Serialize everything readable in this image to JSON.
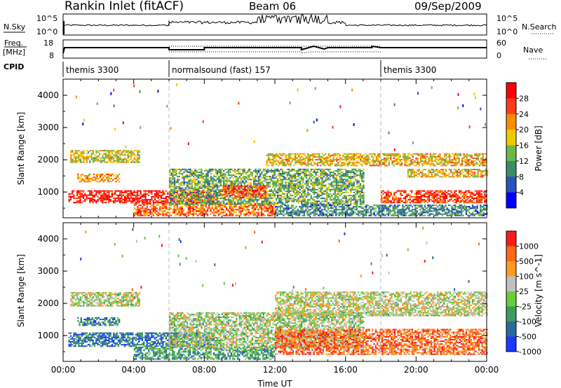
{
  "header": {
    "station": "Rankin Inlet (fitACF)",
    "beam": "Beam 06",
    "date": "09/Sep/2009"
  },
  "nsky_panel": {
    "left_label": "N.Sky",
    "right_label": "N.Search",
    "left_ticks": [
      "10^5",
      "10^0"
    ],
    "right_ticks": [
      "10^5",
      "10^0"
    ]
  },
  "freq_panel": {
    "left_label_1": "Freq.",
    "left_label_2": "[MHz]",
    "right_label": "Nave",
    "left_ticks": [
      "18",
      "8"
    ],
    "right_ticks": [
      "60",
      "0"
    ]
  },
  "cpid_panel": {
    "label": "CPID",
    "modes": [
      {
        "name": "themis 3300",
        "start_hour": 0
      },
      {
        "name": "normalsound (fast) 157",
        "start_hour": 6
      },
      {
        "name": "themis 3300",
        "start_hour": 18
      }
    ]
  },
  "chart_data": [
    {
      "type": "heatmap",
      "quantity": "Power",
      "colorbar_label": "Power [dB]",
      "ylabel": "Slant Range [km]",
      "xlabel": "",
      "ylim": [
        200,
        4500
      ],
      "yticks": [
        1000,
        2000,
        3000,
        4000
      ],
      "xlim_hours": [
        0,
        24
      ],
      "colorbar_ticks": [
        "28",
        "24",
        "20",
        "16",
        "12",
        "8",
        "4"
      ],
      "colors": [
        "#0000ff",
        "#2a52be",
        "#3c8c64",
        "#6ab84a",
        "#f0c800",
        "#ff8c00",
        "#ff3a1a",
        "#ff0000"
      ],
      "echo_bands": [
        {
          "t0": 0.4,
          "t1": 4.3,
          "r0": 1900,
          "r1": 2300,
          "level": 0.55
        },
        {
          "t0": 0.3,
          "t1": 8.5,
          "r0": 650,
          "r1": 1050,
          "level": 0.92
        },
        {
          "t0": 0.8,
          "t1": 3.2,
          "r0": 1300,
          "r1": 1550,
          "level": 0.65
        },
        {
          "t0": 4.0,
          "t1": 12.0,
          "r0": 250,
          "r1": 650,
          "level": 0.75
        },
        {
          "t0": 6.0,
          "t1": 17.0,
          "r0": 600,
          "r1": 1700,
          "level": 0.4
        },
        {
          "t0": 9.0,
          "t1": 11.5,
          "r0": 800,
          "r1": 1200,
          "level": 0.8
        },
        {
          "t0": 11.5,
          "t1": 24,
          "r0": 1800,
          "r1": 2200,
          "level": 0.6
        },
        {
          "t0": 19.5,
          "t1": 24,
          "r0": 1450,
          "r1": 1700,
          "level": 0.6
        },
        {
          "t0": 18.0,
          "t1": 24,
          "r0": 650,
          "r1": 1050,
          "level": 0.85
        },
        {
          "t0": 12.0,
          "t1": 24,
          "r0": 250,
          "r1": 600,
          "level": 0.3
        }
      ]
    },
    {
      "type": "heatmap",
      "quantity": "Velocity",
      "colorbar_label": "Velocity [m s^-1]",
      "ylabel": "Slant Range [km]",
      "xlabel": "Time UT",
      "ylim": [
        200,
        4500
      ],
      "yticks": [
        1000,
        2000,
        3000,
        4000
      ],
      "xlim_hours": [
        0,
        24
      ],
      "xticks": [
        "00:00",
        "04:00",
        "08:00",
        "12:00",
        "16:00",
        "20:00",
        "00:00"
      ],
      "colorbar_ticks": [
        "1000",
        "500",
        "100",
        "25",
        "-25",
        "-100",
        "-500",
        "-1000"
      ],
      "colors": [
        "#1a3aff",
        "#2a6a9a",
        "#3c9c5c",
        "#6acd3a",
        "#c0c0c0",
        "#ff9a20",
        "#ff6a10",
        "#ff1a1a"
      ],
      "echo_bands": [
        {
          "t0": 0.4,
          "t1": 4.3,
          "r0": 1900,
          "r1": 2350,
          "level": 0.5
        },
        {
          "t0": 0.3,
          "t1": 8.5,
          "r0": 650,
          "r1": 1100,
          "level": 0.2
        },
        {
          "t0": 0.8,
          "t1": 3.2,
          "r0": 1300,
          "r1": 1550,
          "level": 0.25
        },
        {
          "t0": 4.0,
          "t1": 12.0,
          "r0": 250,
          "r1": 650,
          "level": 0.3
        },
        {
          "t0": 6.0,
          "t1": 17.0,
          "r0": 600,
          "r1": 1700,
          "level": 0.5
        },
        {
          "t0": 12.0,
          "t1": 24,
          "r0": 1600,
          "r1": 2350,
          "level": 0.55
        },
        {
          "t0": 12.0,
          "t1": 24,
          "r0": 400,
          "r1": 1200,
          "level": 0.8
        }
      ]
    }
  ]
}
